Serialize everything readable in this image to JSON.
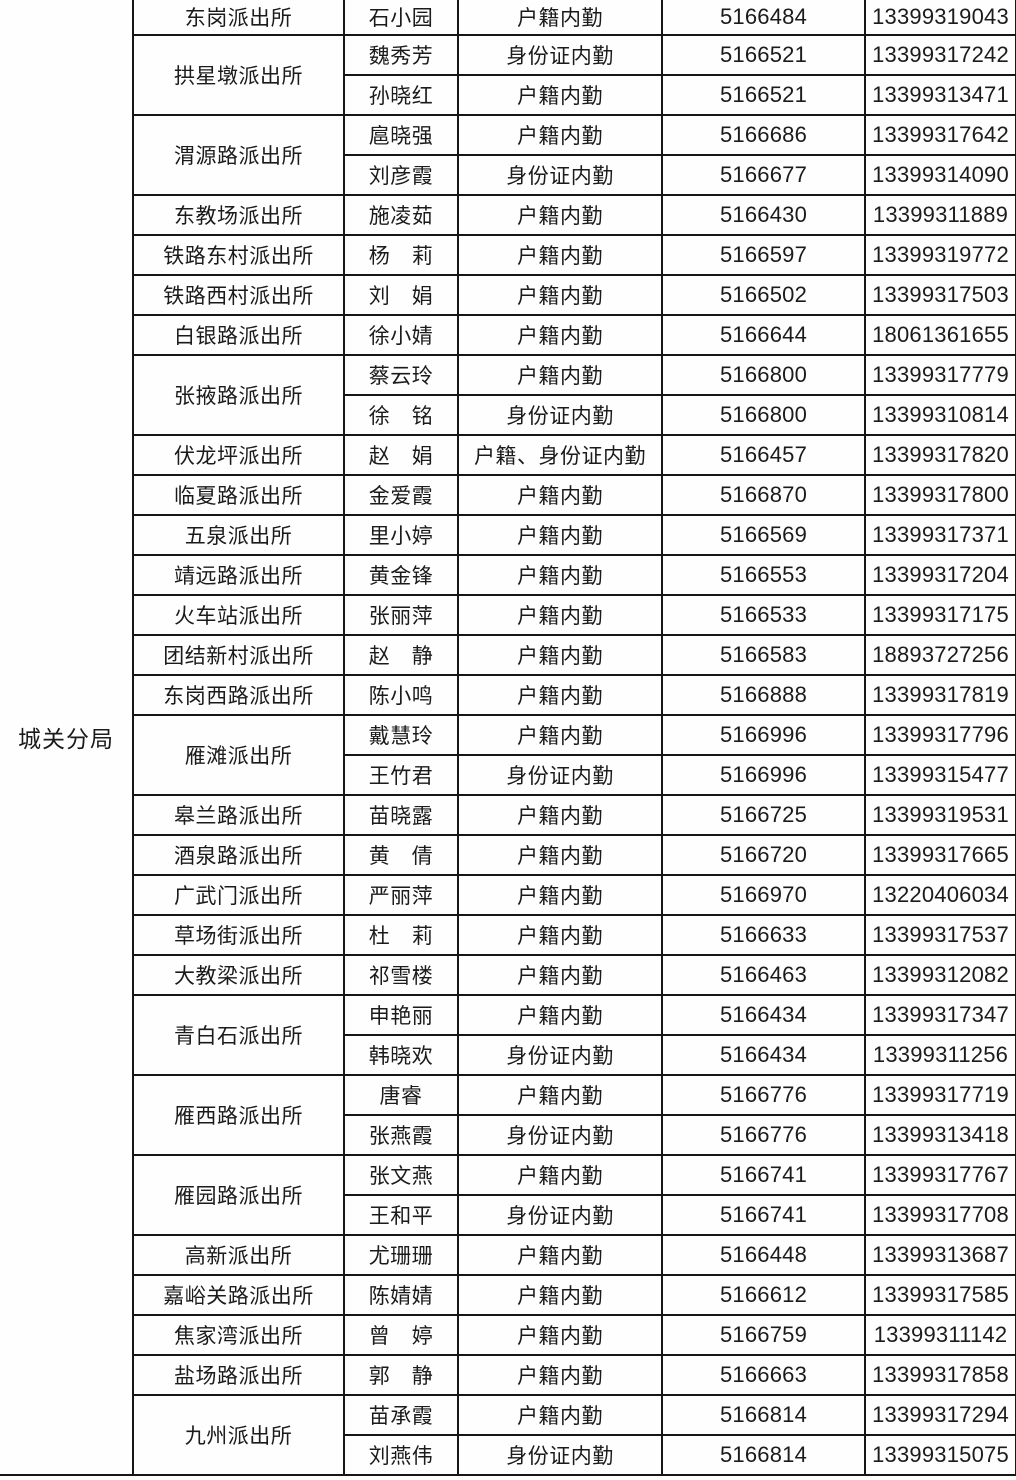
{
  "bureau": {
    "label": "城关分局"
  },
  "marker": {
    "color": "#E0813C"
  },
  "table": {
    "groups": [
      {
        "station": "东岗派出所",
        "people": [
          {
            "name": "石小园",
            "duty": "户籍内勤",
            "phone": "5166484",
            "mobile": "13399319043"
          }
        ]
      },
      {
        "station": "拱星墩派出所",
        "people": [
          {
            "name": "魏秀芳",
            "duty": "身份证内勤",
            "phone": "5166521",
            "mobile": "13399317242"
          },
          {
            "name": "孙晓红",
            "duty": "户籍内勤",
            "phone": "5166521",
            "mobile": "13399313471"
          }
        ]
      },
      {
        "station": "渭源路派出所",
        "people": [
          {
            "name": "扈晓强",
            "duty": "户籍内勤",
            "phone": "5166686",
            "mobile": "13399317642"
          },
          {
            "name": "刘彦霞",
            "duty": "身份证内勤",
            "phone": "5166677",
            "mobile": "13399314090"
          }
        ]
      },
      {
        "station": "东教场派出所",
        "people": [
          {
            "name": "施凌茹",
            "duty": "户籍内勤",
            "phone": "5166430",
            "mobile": "13399311889"
          }
        ]
      },
      {
        "station": "铁路东村派出所",
        "people": [
          {
            "name": "杨　莉",
            "duty": "户籍内勤",
            "phone": "5166597",
            "mobile": "13399319772"
          }
        ]
      },
      {
        "station": "铁路西村派出所",
        "people": [
          {
            "name": "刘　娟",
            "duty": "户籍内勤",
            "phone": "5166502",
            "mobile": "13399317503"
          }
        ]
      },
      {
        "station": "白银路派出所",
        "people": [
          {
            "name": "徐小婧",
            "duty": "户籍内勤",
            "phone": "5166644",
            "mobile": "18061361655"
          }
        ]
      },
      {
        "station": "张掖路派出所",
        "people": [
          {
            "name": "蔡云玲",
            "duty": "户籍内勤",
            "phone": "5166800",
            "mobile": "13399317779"
          },
          {
            "name": "徐　铭",
            "duty": "身份证内勤",
            "phone": "5166800",
            "mobile": "13399310814"
          }
        ]
      },
      {
        "station": "伏龙坪派出所",
        "people": [
          {
            "name": "赵　娟",
            "duty": "户籍、身份证内勤",
            "phone": "5166457",
            "mobile": "13399317820"
          }
        ]
      },
      {
        "station": "临夏路派出所",
        "people": [
          {
            "name": "金爱霞",
            "duty": "户籍内勤",
            "phone": "5166870",
            "mobile": "13399317800"
          }
        ]
      },
      {
        "station": "五泉派出所",
        "people": [
          {
            "name": "里小婷",
            "duty": "户籍内勤",
            "phone": "5166569",
            "mobile": "13399317371"
          }
        ]
      },
      {
        "station": "靖远路派出所",
        "people": [
          {
            "name": "黄金锋",
            "duty": "户籍内勤",
            "phone": "5166553",
            "mobile": "13399317204"
          }
        ]
      },
      {
        "station": "火车站派出所",
        "people": [
          {
            "name": "张丽萍",
            "duty": "户籍内勤",
            "phone": "5166533",
            "mobile": "13399317175"
          }
        ]
      },
      {
        "station": "团结新村派出所",
        "people": [
          {
            "name": "赵　静",
            "duty": "户籍内勤",
            "phone": "5166583",
            "mobile": "18893727256"
          }
        ]
      },
      {
        "station": "东岗西路派出所",
        "people": [
          {
            "name": "陈小鸣",
            "duty": "户籍内勤",
            "phone": "5166888",
            "mobile": "13399317819"
          }
        ]
      },
      {
        "station": "雁滩派出所",
        "people": [
          {
            "name": "戴慧玲",
            "duty": "户籍内勤",
            "phone": "5166996",
            "mobile": "13399317796"
          },
          {
            "name": "王竹君",
            "duty": "身份证内勤",
            "phone": "5166996",
            "mobile": "13399315477"
          }
        ]
      },
      {
        "station": "皋兰路派出所",
        "people": [
          {
            "name": "苗晓露",
            "duty": "户籍内勤",
            "phone": "5166725",
            "mobile": "13399319531"
          }
        ]
      },
      {
        "station": "酒泉路派出所",
        "people": [
          {
            "name": "黄　倩",
            "duty": "户籍内勤",
            "phone": "5166720",
            "mobile": "13399317665"
          }
        ]
      },
      {
        "station": "广武门派出所",
        "people": [
          {
            "name": "严丽萍",
            "duty": "户籍内勤",
            "phone": "5166970",
            "mobile": "13220406034"
          }
        ]
      },
      {
        "station": "草场街派出所",
        "people": [
          {
            "name": "杜　莉",
            "duty": "户籍内勤",
            "phone": "5166633",
            "mobile": "13399317537"
          }
        ]
      },
      {
        "station": "大教梁派出所",
        "people": [
          {
            "name": "祁雪楼",
            "duty": "户籍内勤",
            "phone": "5166463",
            "mobile": "13399312082"
          }
        ]
      },
      {
        "station": "青白石派出所",
        "people": [
          {
            "name": "申艳丽",
            "duty": "户籍内勤",
            "phone": "5166434",
            "mobile": "13399317347"
          },
          {
            "name": "韩晓欢",
            "duty": "身份证内勤",
            "phone": "5166434",
            "mobile": "13399311256"
          }
        ]
      },
      {
        "station": "雁西路派出所",
        "people": [
          {
            "name": "唐睿",
            "duty": "户籍内勤",
            "phone": "5166776",
            "mobile": "13399317719"
          },
          {
            "name": "张燕霞",
            "duty": "身份证内勤",
            "phone": "5166776",
            "mobile": "13399313418"
          }
        ]
      },
      {
        "station": "雁园路派出所",
        "people": [
          {
            "name": "张文燕",
            "duty": "户籍内勤",
            "phone": "5166741",
            "mobile": "13399317767"
          },
          {
            "name": "王和平",
            "duty": "身份证内勤",
            "phone": "5166741",
            "mobile": "13399317708"
          }
        ]
      },
      {
        "station": "高新派出所",
        "people": [
          {
            "name": "尤珊珊",
            "duty": "户籍内勤",
            "phone": "5166448",
            "mobile": "13399313687"
          }
        ]
      },
      {
        "station": "嘉峪关路派出所",
        "people": [
          {
            "name": "陈婧婧",
            "duty": "户籍内勤",
            "phone": "5166612",
            "mobile": "13399317585"
          }
        ]
      },
      {
        "station": "焦家湾派出所",
        "people": [
          {
            "name": "曾　婷",
            "duty": "户籍内勤",
            "phone": "5166759",
            "mobile": "13399311142"
          }
        ]
      },
      {
        "station": "盐场路派出所",
        "people": [
          {
            "name": "郭　静",
            "duty": "户籍内勤",
            "phone": "5166663",
            "mobile": "13399317858"
          }
        ]
      },
      {
        "station": "九州派出所",
        "people": [
          {
            "name": "苗承霞",
            "duty": "户籍内勤",
            "phone": "5166814",
            "mobile": "13399317294"
          },
          {
            "name": "刘燕伟",
            "duty": "身份证内勤",
            "phone": "5166814",
            "mobile": "13399315075"
          }
        ]
      }
    ]
  }
}
